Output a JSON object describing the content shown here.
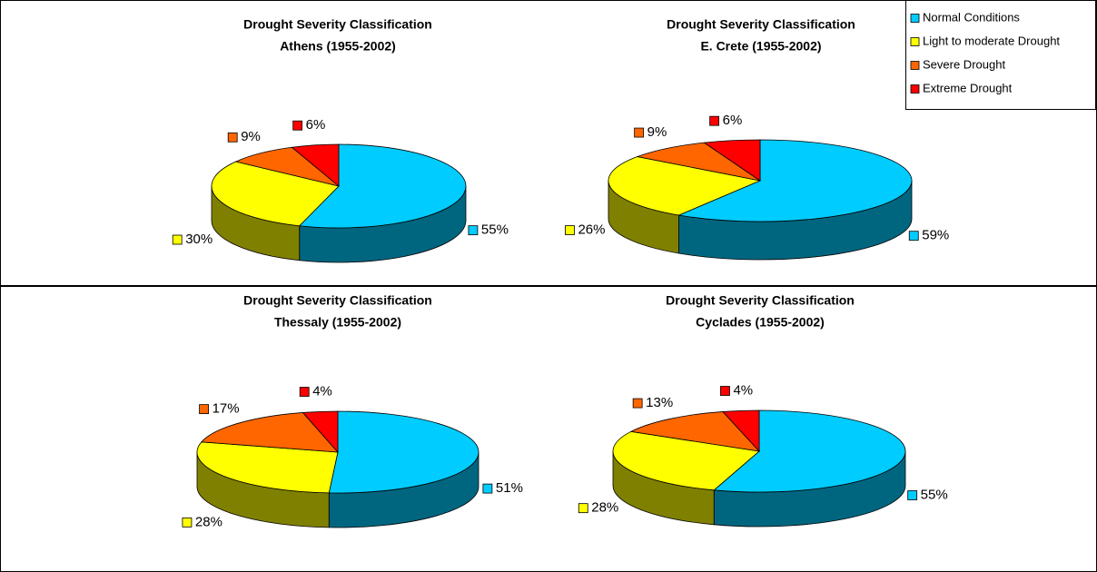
{
  "legend": {
    "categories": [
      "Normal Conditions",
      "Light to moderate Drought",
      "Severe Drought",
      "Extreme Drought"
    ],
    "colors": [
      "#00ccff",
      "#ffff00",
      "#ff6600",
      "#ff0000"
    ],
    "side_colors": [
      "#006680",
      "#808000",
      "#803300",
      "#800000"
    ]
  },
  "chart_data": [
    {
      "type": "pie",
      "title": "Drought Severity Classification",
      "subtitle": "Athens (1955-2002)",
      "values": [
        55,
        30,
        9,
        6
      ],
      "value_labels": [
        "55%",
        "30%",
        "9%",
        "6%"
      ]
    },
    {
      "type": "pie",
      "title": "Drought Severity Classification",
      "subtitle": "E. Crete (1955-2002)",
      "values": [
        59,
        26,
        9,
        6
      ],
      "value_labels": [
        "59%",
        "26%",
        "9%",
        "6%"
      ]
    },
    {
      "type": "pie",
      "title": "Drought Severity Classification",
      "subtitle": "Thessaly (1955-2002)",
      "values": [
        51,
        28,
        17,
        4
      ],
      "value_labels": [
        "51%",
        "28%",
        "17%",
        "4%"
      ]
    },
    {
      "type": "pie",
      "title": "Drought Severity Classification",
      "subtitle": "Cyclades (1955-2002)",
      "values": [
        55,
        28,
        13,
        4
      ],
      "value_labels": [
        "55%",
        "28%",
        "13%",
        "4%"
      ]
    }
  ]
}
